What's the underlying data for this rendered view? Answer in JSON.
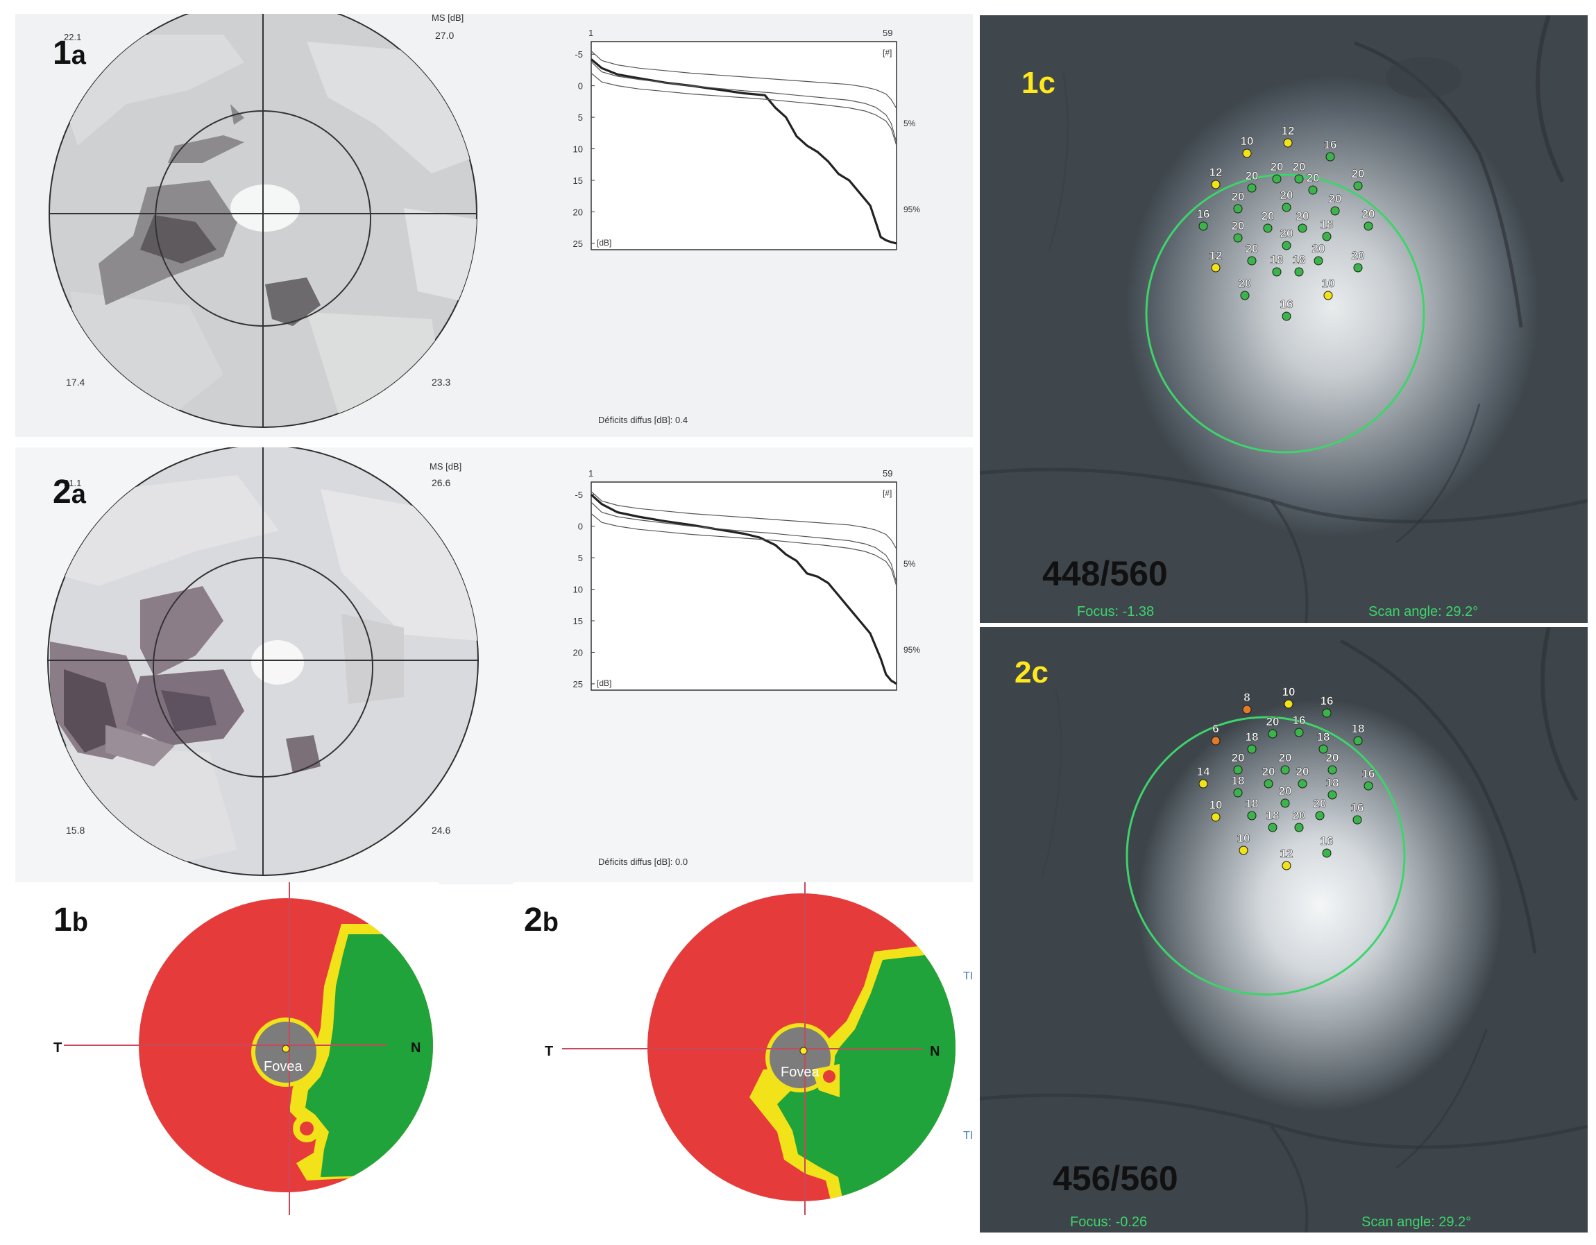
{
  "panels": {
    "p1a": {
      "label_num": "1",
      "label_letter": "a",
      "ms_label": "MS [dB]",
      "ms_value": "27.0",
      "corner_tl": "22.1",
      "corner_bl": "17.4",
      "corner_br": "23.3"
    },
    "p2a": {
      "label_num": "2",
      "label_letter": "a",
      "ms_label": "MS [dB]",
      "ms_value": "26.6",
      "corner_tl": "21.1",
      "corner_bl": "15.8",
      "corner_br": "24.6"
    },
    "p1b": {
      "label_num": "1",
      "label_letter": "b",
      "t_label": "T",
      "n_label": "N",
      "fovea_label": "Fovea"
    },
    "p2b": {
      "label_num": "2",
      "label_letter": "b",
      "t_label": "T",
      "n_label": "N",
      "fovea_label": "Fovea",
      "side_top": "TI",
      "side_bottom": "TI"
    },
    "p1c": {
      "label": "1c",
      "score": "448/560",
      "focus": "Focus: -1.38",
      "scan": "Scan angle: 29.2°"
    },
    "p2c": {
      "label": "2c",
      "score": "456/560",
      "focus": "Focus: -0.26",
      "scan": "Scan angle: 29.2°"
    }
  },
  "chart_data": [
    {
      "type": "line",
      "id": "curve-1",
      "x_tick_start": "1",
      "x_tick_end": "59",
      "x_unit": "[#]",
      "y_unit": "[dB]",
      "y_ticks": [
        "-5",
        "0",
        "5",
        "10",
        "15",
        "20",
        "25"
      ],
      "ylim": [
        -7,
        26
      ],
      "xlim": [
        1,
        59
      ],
      "pct5": "5%",
      "pct95": "95%",
      "footer": "Déficits diffus [dB]:  0.4",
      "series": [
        {
          "x": [
            1,
            3,
            6,
            10,
            15,
            20,
            25,
            30,
            34,
            36,
            38,
            40,
            42,
            44,
            46,
            48,
            50,
            52,
            54,
            55,
            56,
            57,
            58,
            59
          ],
          "y": [
            -4.2,
            -2.8,
            -1.8,
            -1.2,
            -0.5,
            0,
            0.6,
            1.2,
            1.5,
            3.5,
            5,
            8,
            9.5,
            10.5,
            12,
            14,
            15,
            17,
            19,
            21.5,
            24,
            24.5,
            24.8,
            25
          ]
        },
        {
          "x": [
            1,
            3,
            6,
            10,
            15,
            20,
            25,
            30,
            35,
            40,
            45,
            50,
            53,
            55,
            57,
            58,
            59
          ],
          "y": [
            -5.5,
            -4,
            -3.3,
            -2.8,
            -2.4,
            -2,
            -1.7,
            -1.4,
            -1.1,
            -0.8,
            -0.5,
            -0.2,
            0.2,
            0.6,
            1.3,
            2.2,
            3.6
          ]
        },
        {
          "x": [
            1,
            3,
            6,
            10,
            15,
            20,
            25,
            30,
            35,
            40,
            45,
            50,
            53,
            55,
            57,
            58,
            59
          ],
          "y": [
            -3.8,
            -2.2,
            -1.5,
            -1,
            -0.5,
            0,
            0.4,
            0.8,
            1.1,
            1.5,
            1.9,
            2.3,
            2.8,
            3.4,
            4.6,
            6,
            9
          ]
        },
        {
          "x": [
            1,
            3,
            6,
            10,
            15,
            20,
            25,
            30,
            35,
            40,
            45,
            50,
            53,
            55,
            57,
            58,
            59
          ],
          "y": [
            -2,
            -0.6,
            0,
            0.5,
            0.9,
            1.3,
            1.6,
            1.9,
            2.2,
            2.6,
            3,
            3.5,
            4,
            4.6,
            5.6,
            6.8,
            9.5
          ]
        }
      ]
    },
    {
      "type": "line",
      "id": "curve-2",
      "x_tick_start": "1",
      "x_tick_end": "59",
      "x_unit": "[#]",
      "y_unit": "[dB]",
      "y_ticks": [
        "-5",
        "0",
        "5",
        "10",
        "15",
        "20",
        "25"
      ],
      "ylim": [
        -7,
        26
      ],
      "xlim": [
        1,
        59
      ],
      "pct5": "5%",
      "pct95": "95%",
      "footer": "Déficits diffus [dB]:  0.0",
      "series": [
        {
          "x": [
            1,
            3,
            6,
            10,
            15,
            20,
            25,
            30,
            33,
            36,
            38,
            40,
            42,
            44,
            46,
            48,
            50,
            52,
            54,
            56,
            57,
            58,
            59
          ],
          "y": [
            -5,
            -3.5,
            -2.2,
            -1.5,
            -0.8,
            -0.2,
            0.5,
            1.2,
            1.8,
            3,
            4.5,
            5.5,
            7.5,
            8,
            9,
            11,
            13,
            15,
            17,
            21,
            23.5,
            24.5,
            25
          ]
        },
        {
          "x": [
            1,
            3,
            6,
            10,
            15,
            20,
            25,
            30,
            35,
            40,
            45,
            50,
            53,
            55,
            57,
            58,
            59
          ],
          "y": [
            -5.5,
            -4,
            -3.3,
            -2.8,
            -2.4,
            -2,
            -1.7,
            -1.4,
            -1.1,
            -0.8,
            -0.5,
            -0.2,
            0.2,
            0.6,
            1.3,
            2.2,
            3.6
          ]
        },
        {
          "x": [
            1,
            3,
            6,
            10,
            15,
            20,
            25,
            30,
            35,
            40,
            45,
            50,
            53,
            55,
            57,
            58,
            59
          ],
          "y": [
            -3.8,
            -2.2,
            -1.5,
            -1,
            -0.5,
            0,
            0.4,
            0.8,
            1.1,
            1.5,
            1.9,
            2.3,
            2.8,
            3.4,
            4.6,
            6,
            9
          ]
        },
        {
          "x": [
            1,
            3,
            6,
            10,
            15,
            20,
            25,
            30,
            35,
            40,
            45,
            50,
            53,
            55,
            57,
            58,
            59
          ],
          "y": [
            -2,
            -0.6,
            0,
            0.5,
            0.9,
            1.3,
            1.6,
            1.9,
            2.2,
            2.6,
            3,
            3.5,
            4,
            4.6,
            5.6,
            6.8,
            9.5
          ]
        }
      ]
    }
  ],
  "stimuli_1c": [
    {
      "v": "12",
      "c": "yellow"
    },
    {
      "v": "10",
      "c": "yellow"
    },
    {
      "v": "16",
      "c": "green"
    },
    {
      "v": "20",
      "c": "green"
    },
    {
      "v": "20",
      "c": "green"
    },
    {
      "v": "12",
      "c": "yellow"
    },
    {
      "v": "20",
      "c": "green"
    },
    {
      "v": "20",
      "c": "green"
    },
    {
      "v": "20",
      "c": "green"
    },
    {
      "v": "20",
      "c": "green"
    },
    {
      "v": "20",
      "c": "green"
    },
    {
      "v": "20",
      "c": "green"
    },
    {
      "v": "16",
      "c": "green"
    },
    {
      "v": "20",
      "c": "green"
    },
    {
      "v": "20",
      "c": "green"
    },
    {
      "v": "20",
      "c": "green"
    },
    {
      "v": "18",
      "c": "green"
    },
    {
      "v": "20",
      "c": "green"
    },
    {
      "v": "20",
      "c": "green"
    },
    {
      "v": "20",
      "c": "green"
    },
    {
      "v": "12",
      "c": "yellow"
    },
    {
      "v": "20",
      "c": "green"
    },
    {
      "v": "18",
      "c": "green"
    },
    {
      "v": "18",
      "c": "green"
    },
    {
      "v": "20",
      "c": "green"
    },
    {
      "v": "20",
      "c": "green"
    },
    {
      "v": "10",
      "c": "yellow"
    },
    {
      "v": "16",
      "c": "green"
    },
    {
      "v": "16",
      "c": "green"
    }
  ],
  "stimuli_2c": [
    {
      "v": "10",
      "c": "yellow"
    },
    {
      "v": "8",
      "c": "orange"
    },
    {
      "v": "16",
      "c": "green"
    },
    {
      "v": "16",
      "c": "green"
    },
    {
      "v": "20",
      "c": "green"
    },
    {
      "v": "6",
      "c": "orange"
    },
    {
      "v": "18",
      "c": "green"
    },
    {
      "v": "18",
      "c": "green"
    },
    {
      "v": "18",
      "c": "green"
    },
    {
      "v": "20",
      "c": "green"
    },
    {
      "v": "20",
      "c": "green"
    },
    {
      "v": "20",
      "c": "green"
    },
    {
      "v": "14",
      "c": "yellow"
    },
    {
      "v": "18",
      "c": "green"
    },
    {
      "v": "20",
      "c": "green"
    },
    {
      "v": "20",
      "c": "green"
    },
    {
      "v": "18",
      "c": "green"
    },
    {
      "v": "16",
      "c": "green"
    },
    {
      "v": "20",
      "c": "green"
    },
    {
      "v": "10",
      "c": "yellow"
    },
    {
      "v": "18",
      "c": "green"
    },
    {
      "v": "18",
      "c": "green"
    },
    {
      "v": "20",
      "c": "green"
    },
    {
      "v": "20",
      "c": "green"
    },
    {
      "v": "16",
      "c": "green"
    },
    {
      "v": "10",
      "c": "yellow"
    },
    {
      "v": "16",
      "c": "green"
    },
    {
      "v": "12",
      "c": "yellow"
    }
  ],
  "colors": {
    "red": "#e53b3b",
    "green": "#1fa33a",
    "yellow": "#f2e21a",
    "fovea_gray": "#7c7c7c",
    "label_yellow": "#ffe81c",
    "ring_green": "#3ed46b"
  }
}
